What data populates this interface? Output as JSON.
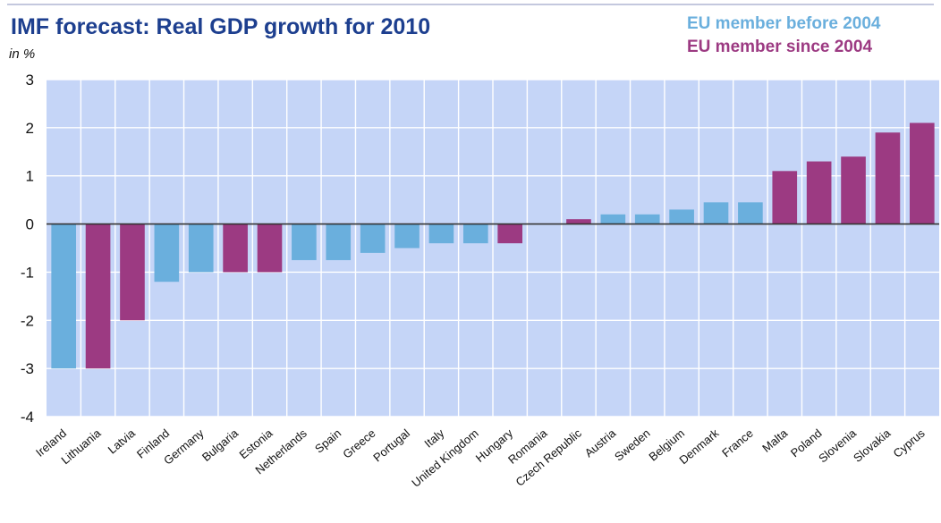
{
  "chart_data": {
    "type": "bar",
    "title": "IMF forecast: Real GDP growth for 2010",
    "ylabel": "in %",
    "xlabel": "",
    "ylim": [
      -4,
      3
    ],
    "yticks": [
      3,
      2,
      1,
      0,
      -1,
      -2,
      -3,
      -4
    ],
    "grid": true,
    "legend_position": "top-right",
    "series": [
      {
        "name": "EU member before 2004",
        "color": "#6aafdd"
      },
      {
        "name": "EU member since 2004",
        "color": "#9c3a82"
      }
    ],
    "categories": [
      "Ireland",
      "Lithuania",
      "Latvia",
      "Finland",
      "Germany",
      "Bulgaria",
      "Estonia",
      "Netherlands",
      "Spain",
      "Greece",
      "Portugal",
      "Italy",
      "United Kingdom",
      "Hungary",
      "Romania",
      "Czech Republic",
      "Austria",
      "Sweden",
      "Belgium",
      "Denmark",
      "France",
      "Malta",
      "Poland",
      "Slovenia",
      "Slovakia",
      "Cyprus"
    ],
    "values": [
      -3.0,
      -3.0,
      -2.0,
      -1.2,
      -1.0,
      -1.0,
      -1.0,
      -0.75,
      -0.75,
      -0.6,
      -0.5,
      -0.4,
      -0.4,
      -0.4,
      0.0,
      0.1,
      0.2,
      0.2,
      0.3,
      0.45,
      0.45,
      1.1,
      1.3,
      1.4,
      1.9,
      2.1
    ],
    "group": [
      0,
      1,
      1,
      0,
      0,
      1,
      1,
      0,
      0,
      0,
      0,
      0,
      0,
      1,
      1,
      1,
      0,
      0,
      0,
      0,
      0,
      1,
      1,
      1,
      1,
      1
    ]
  },
  "colors": {
    "plot_background": "#c5d5f7",
    "grid": "#ffffff",
    "zero_line": "#333333",
    "title": "#1d3f8f"
  }
}
